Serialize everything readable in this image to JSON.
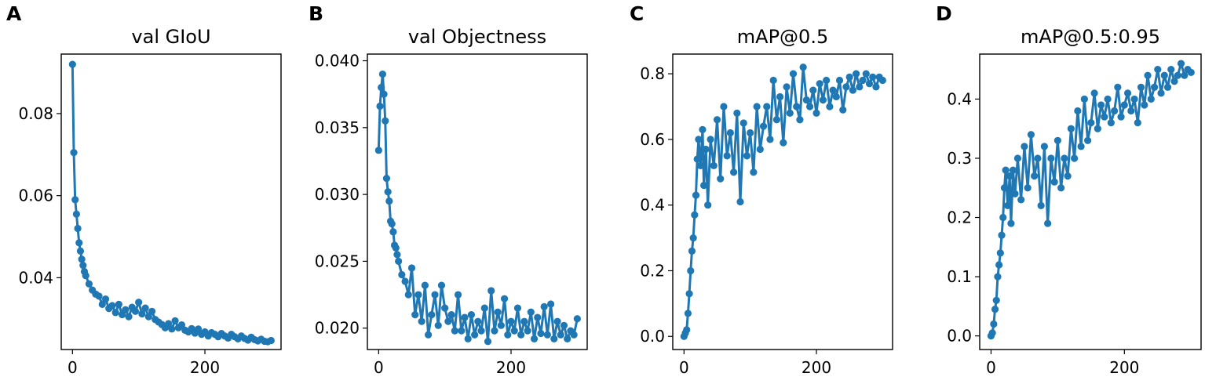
{
  "figure": {
    "series_color": "#1f77b4",
    "text_color": "#000000",
    "background": "#ffffff"
  },
  "chart_data": [
    {
      "type": "line",
      "panel": "A",
      "title": "val GIoU",
      "xlabel": "",
      "ylabel": "",
      "xlim": [
        -17,
        315
      ],
      "ylim": [
        0.0225,
        0.0945
      ],
      "xticks": [
        0,
        200
      ],
      "xtick_labels": [
        "0",
        "200"
      ],
      "yticks": [
        0.04,
        0.06,
        0.08
      ],
      "ytick_labels": [
        "0.04",
        "0.06",
        "0.08"
      ],
      "series": [
        {
          "name": "val GIoU",
          "x": [
            0,
            2,
            4,
            6,
            8,
            10,
            12,
            14,
            16,
            18,
            20,
            25,
            30,
            35,
            40,
            45,
            50,
            55,
            60,
            65,
            70,
            75,
            80,
            85,
            90,
            95,
            100,
            105,
            110,
            115,
            120,
            125,
            130,
            135,
            140,
            145,
            150,
            155,
            160,
            165,
            170,
            175,
            180,
            185,
            190,
            195,
            200,
            205,
            210,
            215,
            220,
            225,
            230,
            235,
            240,
            245,
            250,
            255,
            260,
            265,
            270,
            275,
            280,
            285,
            290,
            295,
            300
          ],
          "values": [
            0.092,
            0.0705,
            0.059,
            0.0555,
            0.052,
            0.0485,
            0.0465,
            0.0445,
            0.043,
            0.0415,
            0.0405,
            0.0385,
            0.037,
            0.036,
            0.0355,
            0.0335,
            0.0348,
            0.0325,
            0.0332,
            0.0315,
            0.0335,
            0.031,
            0.0322,
            0.0305,
            0.0328,
            0.0318,
            0.034,
            0.0312,
            0.0326,
            0.0305,
            0.0318,
            0.0298,
            0.0292,
            0.0286,
            0.0278,
            0.0288,
            0.0275,
            0.0295,
            0.0278,
            0.0285,
            0.0272,
            0.0268,
            0.0276,
            0.0265,
            0.0275,
            0.0262,
            0.0268,
            0.0258,
            0.0266,
            0.0262,
            0.0256,
            0.0264,
            0.0258,
            0.0253,
            0.0262,
            0.0256,
            0.0251,
            0.0258,
            0.0252,
            0.0248,
            0.0255,
            0.0249,
            0.0246,
            0.025,
            0.0245,
            0.0244,
            0.0247
          ]
        }
      ]
    },
    {
      "type": "line",
      "panel": "B",
      "title": "val Objectness",
      "xlabel": "",
      "ylabel": "",
      "xlim": [
        -17,
        315
      ],
      "ylim": [
        0.0184,
        0.0405
      ],
      "xticks": [
        0,
        200
      ],
      "xtick_labels": [
        "0",
        "200"
      ],
      "yticks": [
        0.02,
        0.025,
        0.03,
        0.035,
        0.04
      ],
      "ytick_labels": [
        "0.020",
        "0.025",
        "0.030",
        "0.035",
        "0.040"
      ],
      "series": [
        {
          "name": "val Objectness",
          "x": [
            0,
            2,
            4,
            6,
            8,
            10,
            12,
            14,
            16,
            18,
            20,
            22,
            24,
            26,
            28,
            30,
            35,
            40,
            45,
            50,
            55,
            60,
            65,
            70,
            75,
            80,
            85,
            90,
            95,
            100,
            105,
            110,
            115,
            120,
            125,
            130,
            135,
            140,
            145,
            150,
            155,
            160,
            165,
            170,
            175,
            180,
            185,
            190,
            195,
            200,
            205,
            210,
            215,
            220,
            225,
            230,
            235,
            240,
            245,
            250,
            255,
            260,
            265,
            270,
            275,
            280,
            285,
            290,
            295,
            300
          ],
          "values": [
            0.0333,
            0.0366,
            0.038,
            0.039,
            0.0375,
            0.0355,
            0.0312,
            0.0302,
            0.0295,
            0.028,
            0.0278,
            0.0272,
            0.0262,
            0.026,
            0.0255,
            0.025,
            0.024,
            0.0235,
            0.0225,
            0.0245,
            0.021,
            0.0225,
            0.0205,
            0.0232,
            0.0195,
            0.021,
            0.0225,
            0.0202,
            0.0232,
            0.0215,
            0.0205,
            0.021,
            0.0198,
            0.0225,
            0.0198,
            0.0208,
            0.0192,
            0.021,
            0.0195,
            0.0205,
            0.0198,
            0.0215,
            0.019,
            0.0228,
            0.0198,
            0.0212,
            0.0202,
            0.0222,
            0.0195,
            0.0205,
            0.0198,
            0.0215,
            0.0195,
            0.0205,
            0.0198,
            0.0212,
            0.0192,
            0.0208,
            0.0196,
            0.0216,
            0.0195,
            0.0218,
            0.0192,
            0.0205,
            0.0195,
            0.0202,
            0.0192,
            0.0198,
            0.0195,
            0.0207
          ]
        }
      ]
    },
    {
      "type": "line",
      "panel": "C",
      "title": "mAP@0.5",
      "xlabel": "",
      "ylabel": "",
      "xlim": [
        -17,
        315
      ],
      "ylim": [
        -0.04,
        0.86
      ],
      "xticks": [
        0,
        200
      ],
      "xtick_labels": [
        "0",
        "200"
      ],
      "yticks": [
        0.0,
        0.2,
        0.4,
        0.6,
        0.8
      ],
      "ytick_labels": [
        "0.0",
        "0.2",
        "0.4",
        "0.6",
        "0.8"
      ],
      "series": [
        {
          "name": "mAP@0.5",
          "x": [
            0,
            2,
            4,
            6,
            8,
            10,
            12,
            14,
            16,
            18,
            20,
            22,
            25,
            28,
            30,
            33,
            36,
            40,
            45,
            50,
            55,
            60,
            65,
            70,
            75,
            80,
            85,
            90,
            95,
            100,
            105,
            110,
            115,
            120,
            125,
            130,
            135,
            140,
            145,
            150,
            155,
            160,
            165,
            170,
            175,
            180,
            185,
            190,
            195,
            200,
            205,
            210,
            215,
            220,
            225,
            230,
            235,
            240,
            245,
            250,
            255,
            260,
            265,
            270,
            275,
            280,
            285,
            290,
            295,
            300
          ],
          "values": [
            0.0,
            0.01,
            0.02,
            0.07,
            0.13,
            0.2,
            0.26,
            0.3,
            0.37,
            0.43,
            0.54,
            0.6,
            0.52,
            0.63,
            0.46,
            0.57,
            0.4,
            0.6,
            0.52,
            0.66,
            0.48,
            0.7,
            0.55,
            0.62,
            0.5,
            0.68,
            0.41,
            0.65,
            0.55,
            0.62,
            0.5,
            0.7,
            0.57,
            0.64,
            0.7,
            0.6,
            0.78,
            0.66,
            0.73,
            0.59,
            0.76,
            0.68,
            0.8,
            0.7,
            0.66,
            0.82,
            0.72,
            0.7,
            0.75,
            0.68,
            0.77,
            0.72,
            0.78,
            0.7,
            0.75,
            0.73,
            0.78,
            0.69,
            0.76,
            0.79,
            0.75,
            0.8,
            0.76,
            0.78,
            0.8,
            0.77,
            0.79,
            0.76,
            0.79,
            0.78
          ]
        }
      ]
    },
    {
      "type": "line",
      "panel": "D",
      "title": "mAP@0.5:0.95",
      "xlabel": "",
      "ylabel": "",
      "xlim": [
        -17,
        315
      ],
      "ylim": [
        -0.023,
        0.476
      ],
      "xticks": [
        0,
        200
      ],
      "xtick_labels": [
        "0",
        "200"
      ],
      "yticks": [
        0.0,
        0.1,
        0.2,
        0.3,
        0.4
      ],
      "ytick_labels": [
        "0.0",
        "0.1",
        "0.2",
        "0.3",
        "0.4"
      ],
      "series": [
        {
          "name": "mAP@0.5:0.95",
          "x": [
            0,
            2,
            4,
            6,
            8,
            10,
            12,
            14,
            16,
            18,
            20,
            22,
            25,
            28,
            30,
            33,
            36,
            40,
            45,
            50,
            55,
            60,
            65,
            70,
            75,
            80,
            85,
            90,
            95,
            100,
            105,
            110,
            115,
            120,
            125,
            130,
            135,
            140,
            145,
            150,
            155,
            160,
            165,
            170,
            175,
            180,
            185,
            190,
            195,
            200,
            205,
            210,
            215,
            220,
            225,
            230,
            235,
            240,
            245,
            250,
            255,
            260,
            265,
            270,
            275,
            280,
            285,
            290,
            295,
            300
          ],
          "values": [
            0.0,
            0.005,
            0.02,
            0.045,
            0.06,
            0.1,
            0.12,
            0.14,
            0.17,
            0.2,
            0.25,
            0.28,
            0.22,
            0.27,
            0.19,
            0.28,
            0.24,
            0.3,
            0.23,
            0.32,
            0.25,
            0.34,
            0.27,
            0.3,
            0.22,
            0.32,
            0.19,
            0.3,
            0.26,
            0.33,
            0.25,
            0.3,
            0.27,
            0.35,
            0.3,
            0.38,
            0.32,
            0.4,
            0.33,
            0.36,
            0.41,
            0.35,
            0.39,
            0.37,
            0.4,
            0.36,
            0.38,
            0.42,
            0.37,
            0.39,
            0.41,
            0.38,
            0.4,
            0.36,
            0.42,
            0.39,
            0.44,
            0.4,
            0.42,
            0.45,
            0.41,
            0.44,
            0.42,
            0.45,
            0.43,
            0.44,
            0.46,
            0.44,
            0.45,
            0.445
          ]
        }
      ]
    }
  ]
}
